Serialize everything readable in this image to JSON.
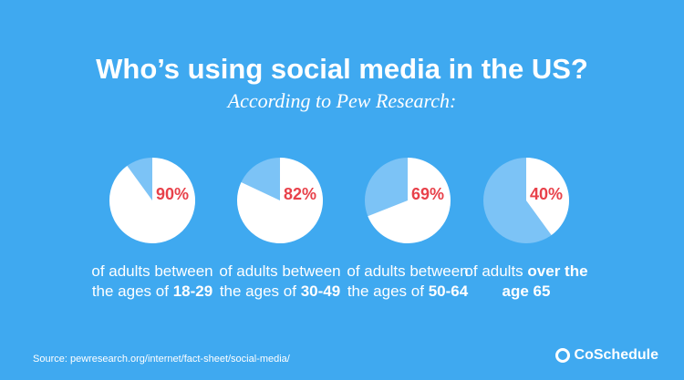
{
  "title": "Who’s using social media in the US?",
  "subtitle": "According to Pew Research:",
  "chart_data": [
    {
      "type": "pie",
      "values": [
        90
      ],
      "value_labels": [
        "90%"
      ],
      "color": "#ffffff",
      "caption": "of adults between the ages of",
      "caption_bold": "18-29"
    },
    {
      "type": "pie",
      "values": [
        82
      ],
      "value_labels": [
        "82%"
      ],
      "color": "#ffffff",
      "caption": "of adults between the ages of",
      "caption_bold": "30-49"
    },
    {
      "type": "pie",
      "values": [
        69
      ],
      "value_labels": [
        "69%"
      ],
      "color": "#ffffff",
      "caption": "of adults between the ages of",
      "caption_bold": "50-64"
    },
    {
      "type": "pie",
      "values": [
        40
      ],
      "value_labels": [
        "40%"
      ],
      "color": "#ffffff",
      "caption": "of adults",
      "caption_bold": "over the age 65"
    }
  ],
  "source": "Source: pewresearch.org/internet/fact-sheet/social-media/",
  "brand": "CoSchedule"
}
